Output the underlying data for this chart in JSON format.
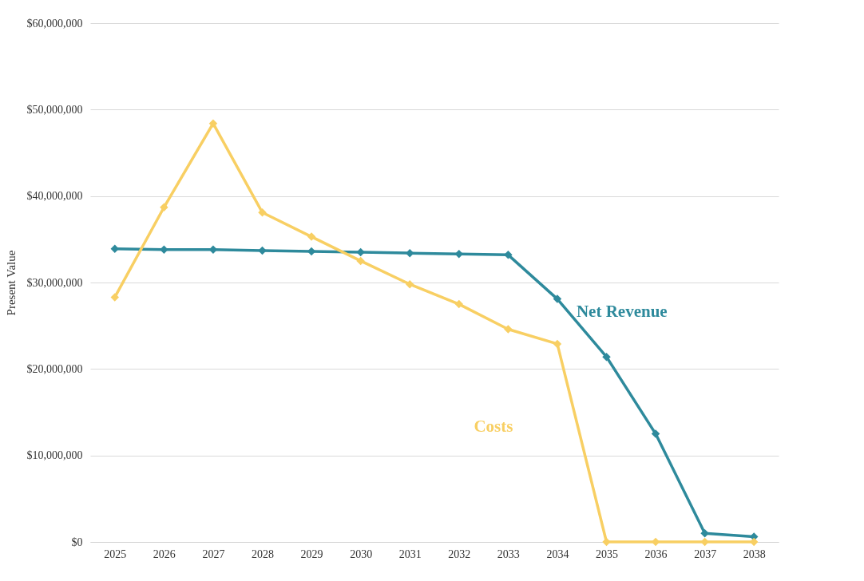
{
  "chart_data": {
    "type": "line",
    "ylabel": "Present Value",
    "categories": [
      "2025",
      "2026",
      "2027",
      "2028",
      "2029",
      "2030",
      "2031",
      "2032",
      "2033",
      "2034",
      "2035",
      "2036",
      "2037",
      "2038"
    ],
    "series": [
      {
        "name": "Net Revenue",
        "color": "#2e8a9c",
        "values": [
          33900000,
          33800000,
          33800000,
          33700000,
          33600000,
          33500000,
          33400000,
          33300000,
          33200000,
          28100000,
          21400000,
          12500000,
          1000000,
          600000
        ]
      },
      {
        "name": "Costs",
        "color": "#f8cf63",
        "values": [
          28300000,
          38700000,
          48400000,
          38100000,
          35300000,
          32500000,
          29800000,
          27500000,
          24600000,
          22900000,
          0,
          0,
          0,
          0
        ]
      }
    ],
    "ylim": [
      0,
      60000000
    ],
    "yticks": [
      {
        "value": 0,
        "label": "$0"
      },
      {
        "value": 10000000,
        "label": "$10,000,000"
      },
      {
        "value": 20000000,
        "label": "$20,000,000"
      },
      {
        "value": 30000000,
        "label": "$30,000,000"
      },
      {
        "value": 40000000,
        "label": "$40,000,000"
      },
      {
        "value": 50000000,
        "label": "$50,000,000"
      },
      {
        "value": 60000000,
        "label": "$60,000,000"
      }
    ],
    "grid": "y",
    "marker": "diamond",
    "line_style": "solid",
    "legend": false
  }
}
